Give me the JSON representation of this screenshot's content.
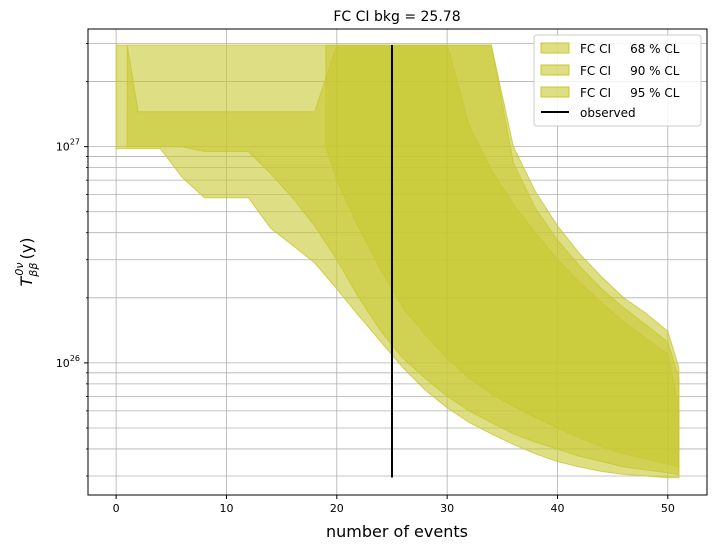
{
  "chart_data": {
    "type": "area",
    "title": "FC CI bkg = 25.78",
    "xlabel": "number of events",
    "ylabel_main": "T",
    "ylabel_sup": "0ν",
    "ylabel_sub": "ββ",
    "ylabel_unit": "(y)",
    "xlim": [
      -2.55,
      53.55
    ],
    "ylim": [
      2.45e+25,
      3.5e+27
    ],
    "y_scale": "log",
    "grid": true,
    "grid_color": "#b0b0b0",
    "legend_position": "top-right",
    "x_ticks": [
      0,
      10,
      20,
      30,
      40,
      50
    ],
    "x_tick_labels": [
      "0",
      "10",
      "20",
      "30",
      "40",
      "50"
    ],
    "y_major_ticks": [
      1e+26,
      1e+27
    ],
    "y_tick_labels": [
      {
        "base": "10",
        "exp": "26"
      },
      {
        "base": "10",
        "exp": "27"
      }
    ],
    "y_minor_ticks": [
      3e+25,
      4e+25,
      5e+25,
      6e+25,
      7e+25,
      8e+25,
      9e+25,
      2e+26,
      3e+26,
      4e+26,
      5e+26,
      6e+26,
      7e+26,
      8e+26,
      9e+26,
      2e+27,
      3e+27
    ],
    "series": [
      {
        "name": "FC CI     68 % CL",
        "color": "#c8c832",
        "opacity": 0.6,
        "x": [
          19,
          20,
          22,
          24,
          26,
          28,
          30,
          32,
          34,
          36,
          38,
          40,
          42,
          44,
          46,
          48,
          50,
          51
        ],
        "upper": [
          2.95e+27,
          2.95e+27,
          2.95e+27,
          2.95e+27,
          2.95e+27,
          2.95e+27,
          2.95e+27,
          1.25e+27,
          7.8e+26,
          5.4e+26,
          4e+26,
          3e+26,
          2.35e+26,
          1.9e+26,
          1.55e+26,
          1.3e+26,
          1.1e+26,
          6.2e+25
        ],
        "lower": [
          1e+27,
          7e+26,
          4.2e+26,
          2.7e+26,
          1.8e+26,
          1.35e+26,
          1.05e+26,
          8.5e+25,
          7.2e+25,
          6.3e+25,
          5.6e+25,
          5e+25,
          4.5e+25,
          4.1e+25,
          3.8e+25,
          3.6e+25,
          3.4e+25,
          3.3e+25
        ]
      },
      {
        "name": "FC CI     90 % CL",
        "color": "#c8c832",
        "opacity": 0.6,
        "x": [
          1,
          2,
          4,
          6,
          8,
          10,
          12,
          14,
          16,
          18,
          20,
          22,
          24,
          26,
          28,
          30,
          32,
          34,
          36,
          38,
          40,
          42,
          44,
          46,
          48,
          50,
          51
        ],
        "upper": [
          2.95e+27,
          1.45e+27,
          1.45e+27,
          1.45e+27,
          1.45e+27,
          1.45e+27,
          1.45e+27,
          1.45e+27,
          1.45e+27,
          1.45e+27,
          2.95e+27,
          2.95e+27,
          2.95e+27,
          2.95e+27,
          2.95e+27,
          2.95e+27,
          2.95e+27,
          2.95e+27,
          8.4e+26,
          5.2e+26,
          3.7e+26,
          2.8e+26,
          2.2e+26,
          1.8e+26,
          1.5e+26,
          1.25e+26,
          8.5e+25
        ],
        "lower": [
          1e+27,
          1e+27,
          1e+27,
          1e+27,
          9.5e+26,
          9.5e+26,
          9.5e+26,
          7.5e+26,
          5.8e+26,
          4.3e+26,
          3e+26,
          2e+26,
          1.4e+26,
          1.05e+26,
          8.5e+25,
          7e+25,
          6e+25,
          5.3e+25,
          4.7e+25,
          4.3e+25,
          4e+25,
          3.7e+25,
          3.5e+25,
          3.3e+25,
          3.2e+25,
          3.1e+25,
          3.05e+25
        ]
      },
      {
        "name": "FC CI     95 % CL",
        "color": "#c8c832",
        "opacity": 0.6,
        "x": [
          0,
          2,
          4,
          6,
          8,
          10,
          12,
          14,
          16,
          18,
          20,
          22,
          24,
          26,
          28,
          30,
          32,
          34,
          36,
          38,
          40,
          42,
          44,
          46,
          48,
          50,
          51
        ],
        "upper": [
          2.95e+27,
          2.95e+27,
          2.95e+27,
          2.95e+27,
          2.95e+27,
          2.95e+27,
          2.95e+27,
          2.95e+27,
          2.95e+27,
          2.95e+27,
          2.95e+27,
          2.95e+27,
          2.95e+27,
          2.95e+27,
          2.95e+27,
          2.95e+27,
          2.95e+27,
          2.95e+27,
          1e+27,
          6.2e+26,
          4.3e+26,
          3.2e+26,
          2.5e+26,
          2e+26,
          1.7e+26,
          1.4e+26,
          9.5e+25
        ],
        "lower": [
          9.8e+26,
          9.8e+26,
          9.8e+26,
          7.2e+26,
          5.8e+26,
          5.8e+26,
          5.8e+26,
          4.2e+26,
          3.5e+26,
          2.9e+26,
          2.2e+26,
          1.65e+26,
          1.25e+26,
          9.5e+25,
          7.5e+25,
          6.2e+25,
          5.3e+25,
          4.7e+25,
          4.2e+25,
          3.8e+25,
          3.5e+25,
          3.3e+25,
          3.15e+25,
          3.05e+25,
          3e+25,
          2.95e+25,
          2.95e+25
        ]
      }
    ],
    "observed": {
      "name": "observed",
      "color": "#000000",
      "x": 25,
      "y_range": [
        2.95e+25,
        2.95e+27
      ]
    }
  }
}
